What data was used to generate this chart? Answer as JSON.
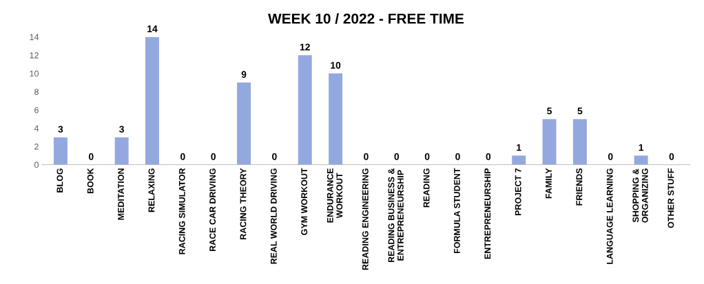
{
  "chart_data": {
    "type": "bar",
    "title": "WEEK 10 / 2022 - FREE TIME",
    "categories": [
      "BLOG",
      "BOOK",
      "MEDITATION",
      "RELAXING",
      "RACING SIMULATOR",
      "RACE CAR DRIVING",
      "RACING THEORY",
      "REAL WORLD DRIVING",
      "GYM WORKOUT",
      "ENDURANCE\nWORKOUT",
      "READING ENGINEERING",
      "READING BUSINESS &\nENTREPRENEURSHIP",
      "READING",
      "FORMULA STUDENT",
      "ENTREPRENEURSHIP",
      "PROJECT 7",
      "FAMILY",
      "FRIENDS",
      "LANGUAGE LEARNING",
      "SHOPPING &\nORGANIZING",
      "OTHER STUFF"
    ],
    "values": [
      3,
      0,
      3,
      14,
      0,
      0,
      9,
      0,
      12,
      10,
      0,
      0,
      0,
      0,
      0,
      1,
      5,
      5,
      0,
      1,
      0
    ],
    "color": "#94a8e0",
    "ylim": [
      0,
      14
    ],
    "yticks": [
      0,
      2,
      4,
      6,
      8,
      10,
      12,
      14
    ],
    "data_labels": true,
    "grid": false
  }
}
